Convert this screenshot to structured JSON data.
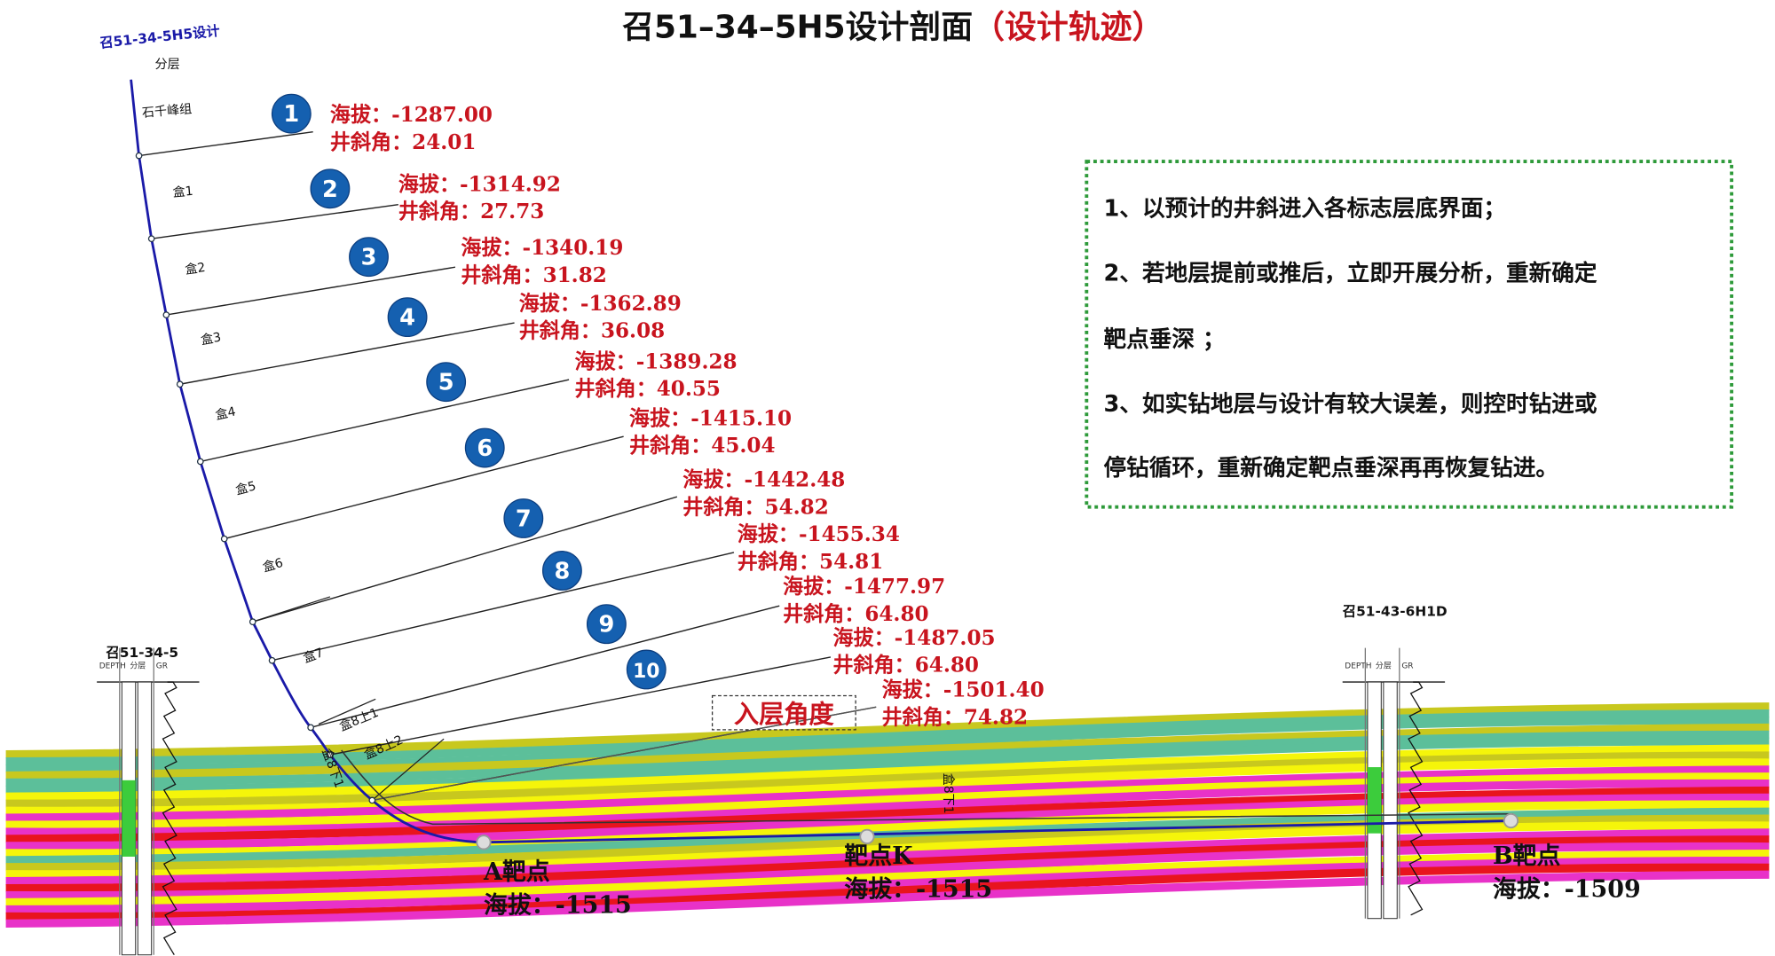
{
  "title": {
    "main": "召51–34–5H5设计剖面",
    "sub": "（设计轨迹）"
  },
  "design_well": {
    "name": "召51-34-5H5设计",
    "layer_header": "分层"
  },
  "layers": [
    "石千峰组",
    "盒1",
    "盒2",
    "盒3",
    "盒4",
    "盒5",
    "盒6",
    "盒7",
    "盒8上1",
    "盒8上2",
    "盒8下1"
  ],
  "markers": [
    {
      "num": "1",
      "elev": "海拔：-1287.00",
      "incl": "井斜角：24.01"
    },
    {
      "num": "2",
      "elev": "海拔：-1314.92",
      "incl": "井斜角：27.73"
    },
    {
      "num": "3",
      "elev": "海拔：-1340.19",
      "incl": "井斜角：31.82"
    },
    {
      "num": "4",
      "elev": "海拔：-1362.89",
      "incl": "井斜角：36.08"
    },
    {
      "num": "5",
      "elev": "海拔：-1389.28",
      "incl": "井斜角：40.55"
    },
    {
      "num": "6",
      "elev": "海拔：-1415.10",
      "incl": "井斜角：45.04"
    },
    {
      "num": "7",
      "elev": "海拔：-1442.48",
      "incl": "井斜角：54.82"
    },
    {
      "num": "8",
      "elev": "海拔：-1455.34",
      "incl": "井斜角：54.81"
    },
    {
      "num": "9",
      "elev": "海拔：-1477.97",
      "incl": "井斜角：64.80"
    },
    {
      "num": "10",
      "elev": "海拔：-1487.05",
      "incl": "井斜角：64.80"
    },
    {
      "num": "",
      "elev": "海拔：-1501.40",
      "incl": "井斜角：74.82"
    }
  ],
  "entry_angle_label": "入层角度",
  "targets": [
    {
      "name": "A靶点",
      "elev": "海拔：-1515"
    },
    {
      "name": "靶点K",
      "elev": "海拔：-1515"
    },
    {
      "name": "B靶点",
      "elev": "海拔：-1509"
    }
  ],
  "offset_wells": [
    {
      "name": "召51-34-5",
      "cols": [
        "DEPTH",
        "分层",
        "GR"
      ]
    },
    {
      "name": "召51-43-6H1D",
      "cols": [
        "DEPTH",
        "分层",
        "GR"
      ]
    }
  ],
  "notes": [
    "1、以预计的井斜进入各标志层底界面；",
    "2、若地层提前或推后，立即开展分析，重新确定",
    "靶点垂深 ；",
    "3、如实钻地层与设计有较大误差，则控时钻进或",
    "停钻循环，重新确定靶点垂深再再恢复钻进。"
  ],
  "colors": {
    "trajectory": "#1a1aa8",
    "marker_circle": "#1560b0",
    "label_red": "#c8141e",
    "note_border": "#2e9a3a",
    "strata": [
      "#c8c81e",
      "#5cbf9a",
      "#f5f50a",
      "#e832c8",
      "#e8141e"
    ]
  }
}
